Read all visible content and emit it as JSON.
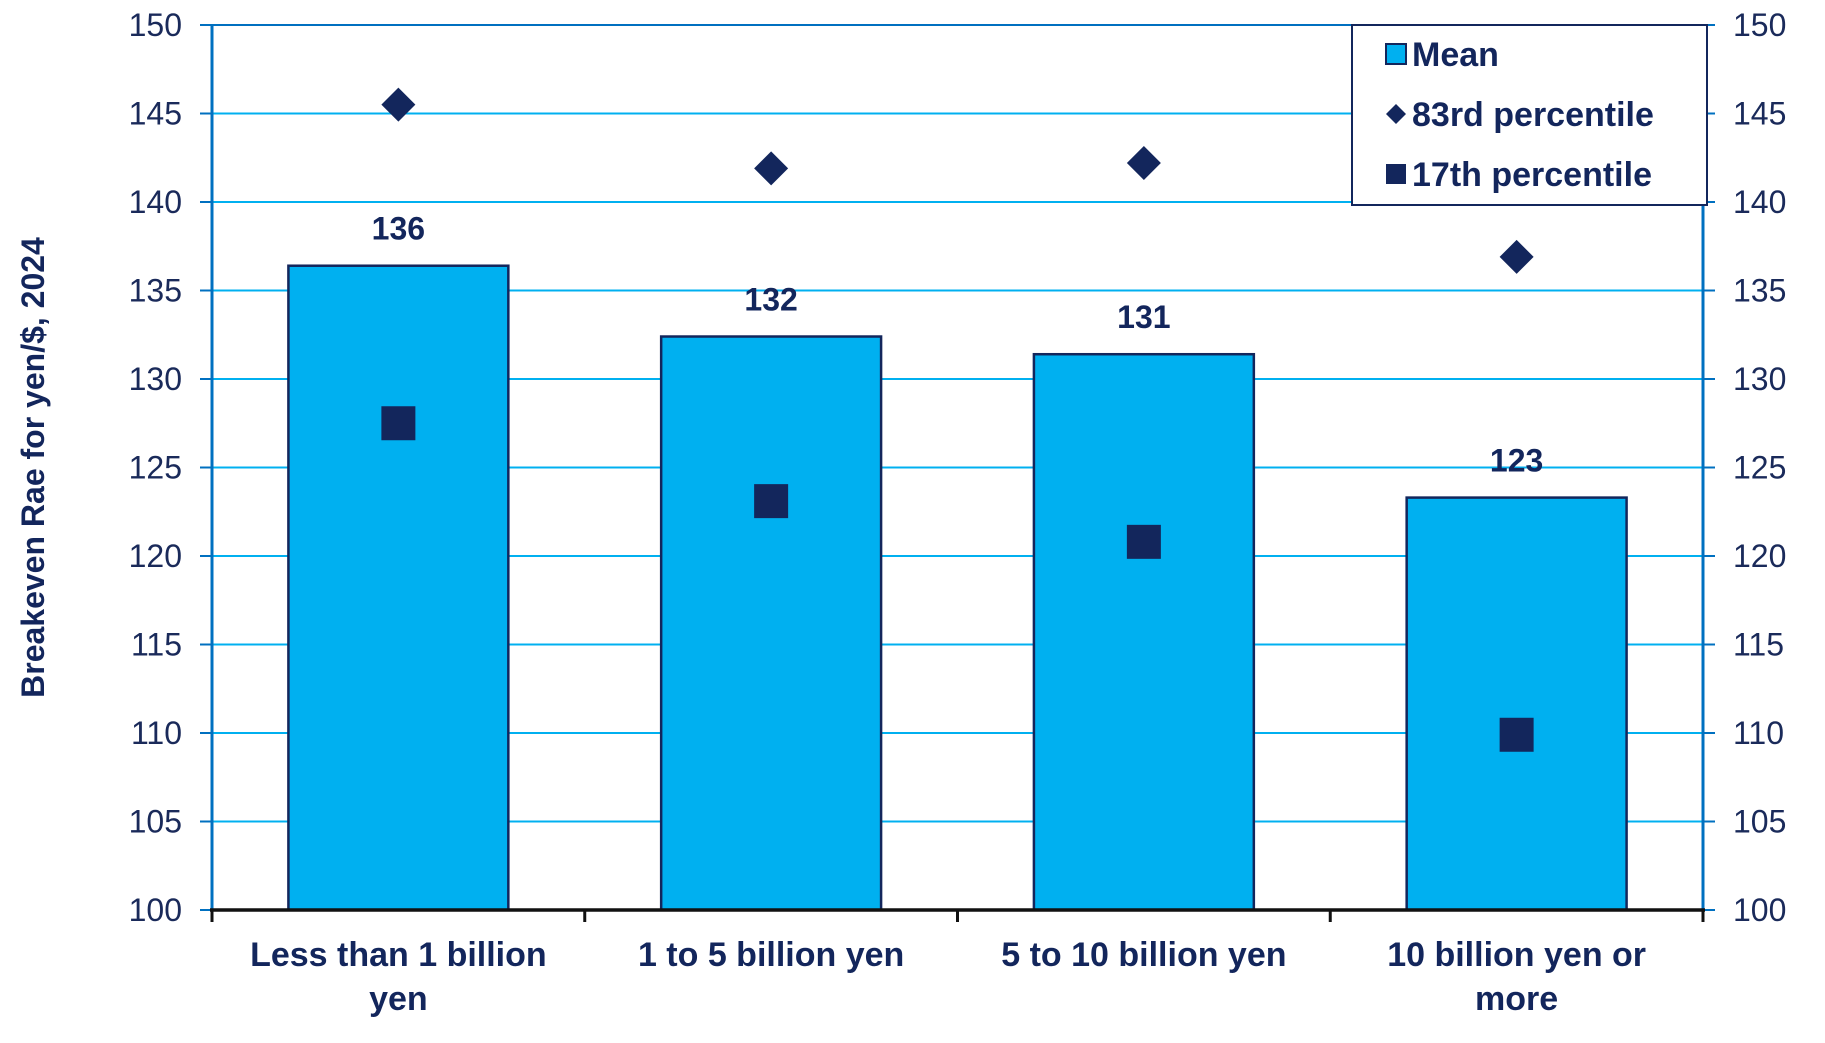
{
  "chart_data": {
    "type": "bar",
    "title": "",
    "xlabel": "",
    "ylabel": "Breakeven Rae for yen/$, 2024",
    "ylim": [
      100,
      150
    ],
    "y_ticks": [
      100,
      105,
      110,
      115,
      120,
      125,
      130,
      135,
      140,
      145,
      150
    ],
    "secondary_y_axis": true,
    "grid": true,
    "legend_position": "top-right",
    "categories": [
      [
        "Less than 1 billion",
        "yen"
      ],
      [
        "1 to 5 billion yen"
      ],
      [
        "5 to 10 billion yen"
      ],
      [
        "10 billion yen or",
        "more"
      ]
    ],
    "series": [
      {
        "name": "Mean",
        "kind": "bar",
        "values": [
          136.4,
          132.4,
          131.4,
          123.3
        ],
        "labels": [
          "136",
          "132",
          "131",
          "123"
        ],
        "color": "#00b0f0"
      },
      {
        "name": "83rd percentile",
        "kind": "marker-diamond",
        "values": [
          145.5,
          141.9,
          142.2,
          136.9
        ],
        "color": "#13265c"
      },
      {
        "name": "17th percentile",
        "kind": "marker-square",
        "values": [
          127.5,
          123.1,
          120.8,
          109.9
        ],
        "color": "#13265c"
      }
    ],
    "colors": {
      "axis": "#0070c0",
      "gridline": "#00b0f0",
      "text": "#13265c",
      "bar_border": "#13265c"
    }
  }
}
